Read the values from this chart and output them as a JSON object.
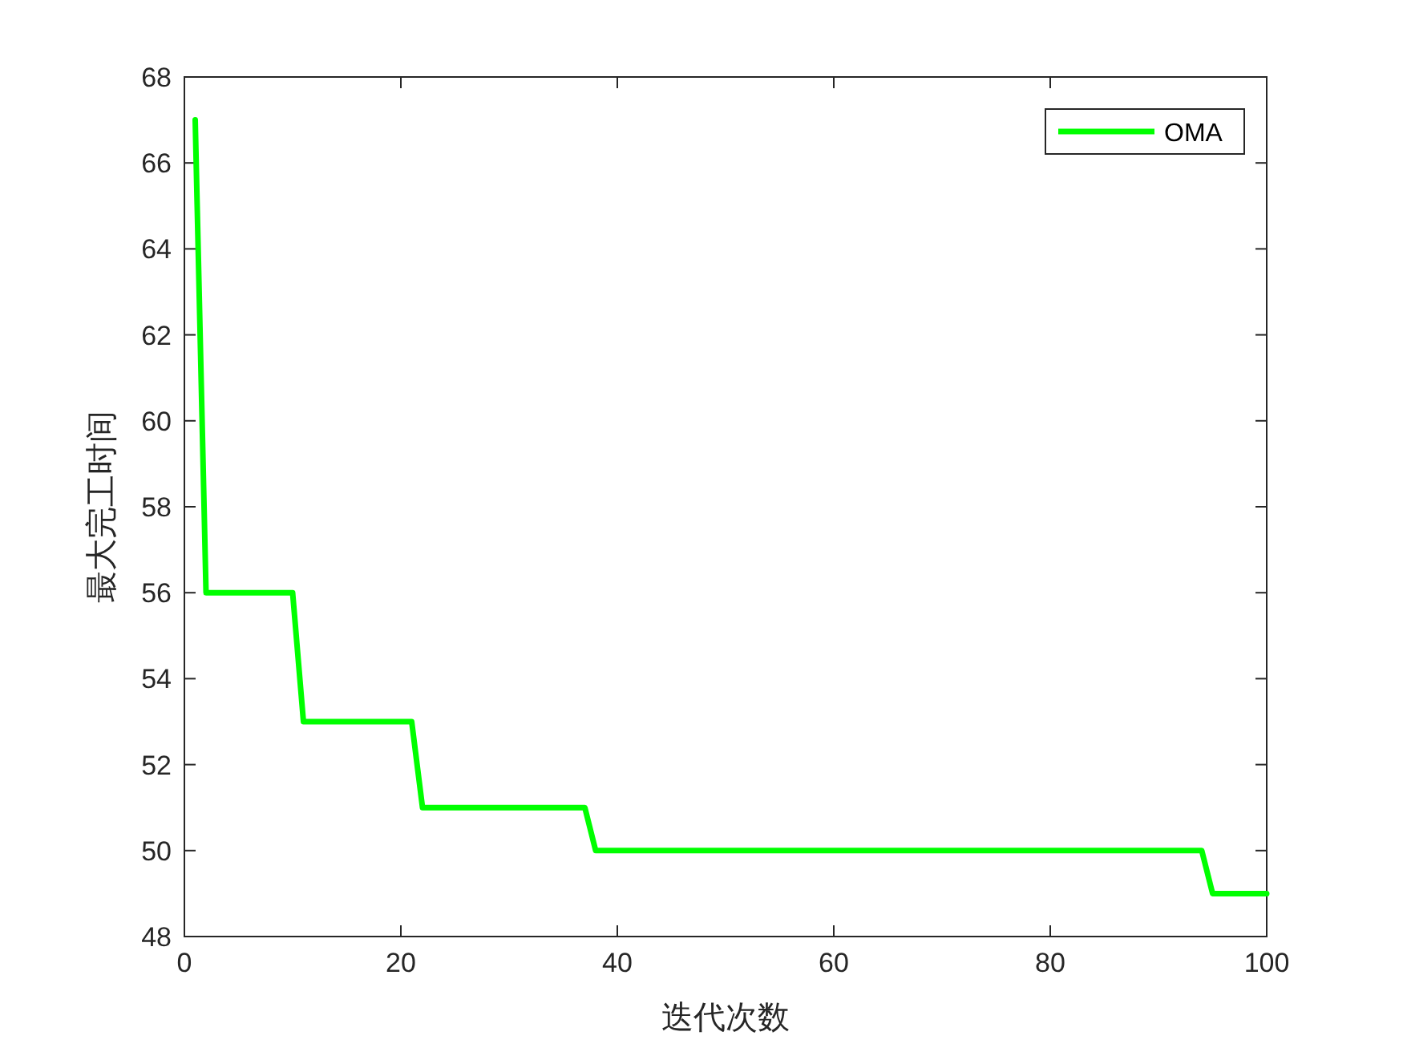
{
  "chart_data": {
    "type": "line",
    "xlabel": "迭代次数",
    "ylabel": "最大完工时间",
    "x": [
      1,
      2,
      10,
      11,
      21,
      22,
      37,
      38,
      94,
      95,
      100
    ],
    "series": [
      {
        "name": "OMA",
        "color": "#00ff00",
        "values": [
          67,
          56,
          56,
          53,
          53,
          51,
          51,
          50,
          50,
          49,
          49
        ]
      }
    ],
    "xlim": [
      0,
      100
    ],
    "xticks": [
      0,
      20,
      40,
      60,
      80,
      100
    ],
    "ylim": [
      48,
      68
    ],
    "yticks": [
      48,
      50,
      52,
      54,
      56,
      58,
      60,
      62,
      64,
      66,
      68
    ],
    "grid": false,
    "legend": "top right",
    "line_style": "solid"
  }
}
